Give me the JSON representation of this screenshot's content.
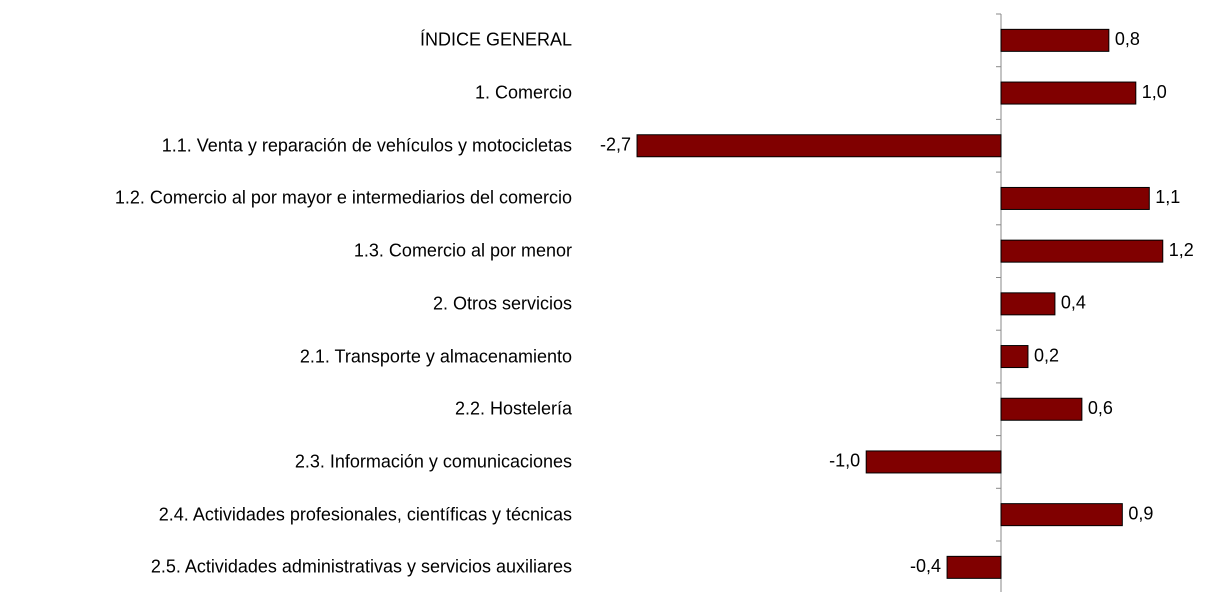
{
  "chart_data": {
    "type": "bar",
    "orientation": "horizontal",
    "categories": [
      "ÍNDICE GENERAL",
      "1. Comercio",
      "1.1. Venta y reparación de vehículos y motocicletas",
      "1.2. Comercio al por mayor e intermediarios del comercio",
      "1.3. Comercio al por menor",
      "2. Otros servicios",
      "2.1. Transporte y almacenamiento",
      "2.2. Hostelería",
      "2.3. Información y comunicaciones",
      "2.4. Actividades profesionales, científicas y técnicas",
      "2.5. Actividades administrativas y servicios auxiliares"
    ],
    "values": [
      0.8,
      1.0,
      -2.7,
      1.1,
      1.2,
      0.4,
      0.2,
      0.6,
      -1.0,
      0.9,
      -0.4
    ],
    "value_labels": [
      "0,8",
      "1,0",
      "-2,7",
      "1,1",
      "1,2",
      "0,4",
      "0,2",
      "0,6",
      "-1,0",
      "0,9",
      "-0,4"
    ],
    "color": "#800000"
  }
}
